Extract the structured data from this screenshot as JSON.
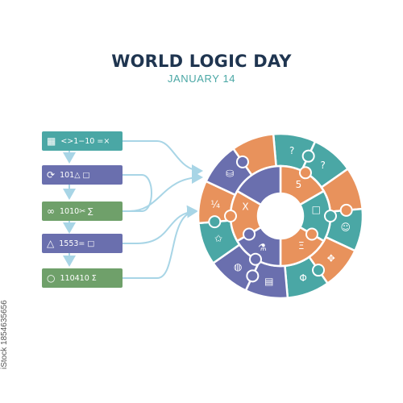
{
  "title": "WORLD LOGIC DAY",
  "subtitle": "JANUARY 14",
  "watermark": "iStock 1854635656",
  "colors": {
    "teal": "#4aa7a5",
    "orange": "#e8925c",
    "purple": "#6a6fae",
    "green": "#6fa06a",
    "navy": "#1f3550",
    "arrow": "#a8d5e6"
  },
  "flow_boxes": [
    {
      "color": "#4aa7a5",
      "icon": "binary-grid-icon",
      "symbol": "▦",
      "text": "<>1−10  =×"
    },
    {
      "color": "#6a6fae",
      "icon": "refresh-icon",
      "symbol": "⟳",
      "text": "101△  □"
    },
    {
      "color": "#6fa06a",
      "icon": "infinity-icon",
      "symbol": "∞",
      "text": "1010✂  ∑"
    },
    {
      "color": "#6a6fae",
      "icon": "triangle-icon",
      "symbol": "△",
      "text": "1553=  □"
    },
    {
      "color": "#6fa06a",
      "icon": "circle-icon",
      "symbol": "○",
      "text": "110410  Σ"
    }
  ],
  "puzzle_symbols": [
    {
      "icon": "question-bubble-icon",
      "text": "?"
    },
    {
      "icon": "question-bubble-icon",
      "text": "?"
    },
    {
      "icon": "head-icon",
      "text": "☺"
    },
    {
      "icon": "compass-icon",
      "text": "✥"
    },
    {
      "icon": "phi-icon",
      "text": "Φ"
    },
    {
      "icon": "chart-icon",
      "text": "▤"
    },
    {
      "icon": "globe-icon",
      "text": "◍"
    },
    {
      "icon": "puzzle-star-icon",
      "text": "✩"
    },
    {
      "icon": "quarter-icon",
      "text": "¼"
    },
    {
      "icon": "cube-icon",
      "text": "⛁"
    },
    {
      "icon": "five-icon",
      "text": "5"
    },
    {
      "icon": "square-icon",
      "text": "□"
    },
    {
      "icon": "x-icon",
      "text": "X"
    },
    {
      "icon": "xi-icon",
      "text": "Ξ"
    },
    {
      "icon": "flask-icon",
      "text": "⚗"
    }
  ]
}
